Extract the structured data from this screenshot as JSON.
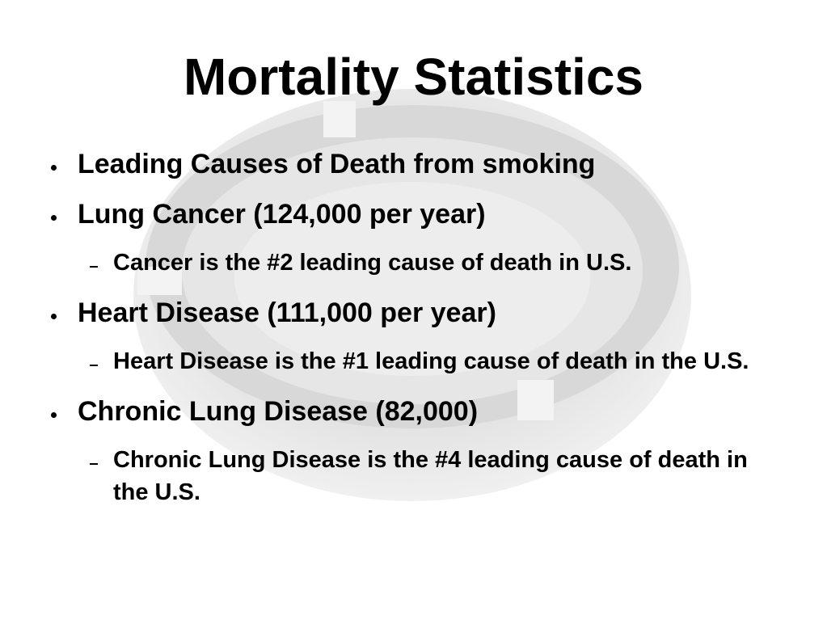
{
  "title": "Mortality Statistics",
  "items": [
    {
      "text": "Leading Causes of Death from smoking"
    },
    {
      "text": "Lung Cancer (124,000 per year)",
      "sub": [
        "Cancer is the #2 leading cause of death in U.S."
      ]
    },
    {
      "text": "Heart Disease (111,000 per year)",
      "sub": [
        "Heart Disease is the #1 leading cause of death in the U.S."
      ]
    },
    {
      "text": "Chronic Lung Disease (82,000)",
      "sub": [
        "Chronic Lung Disease is the #4 leading cause of death in the U.S."
      ]
    }
  ]
}
